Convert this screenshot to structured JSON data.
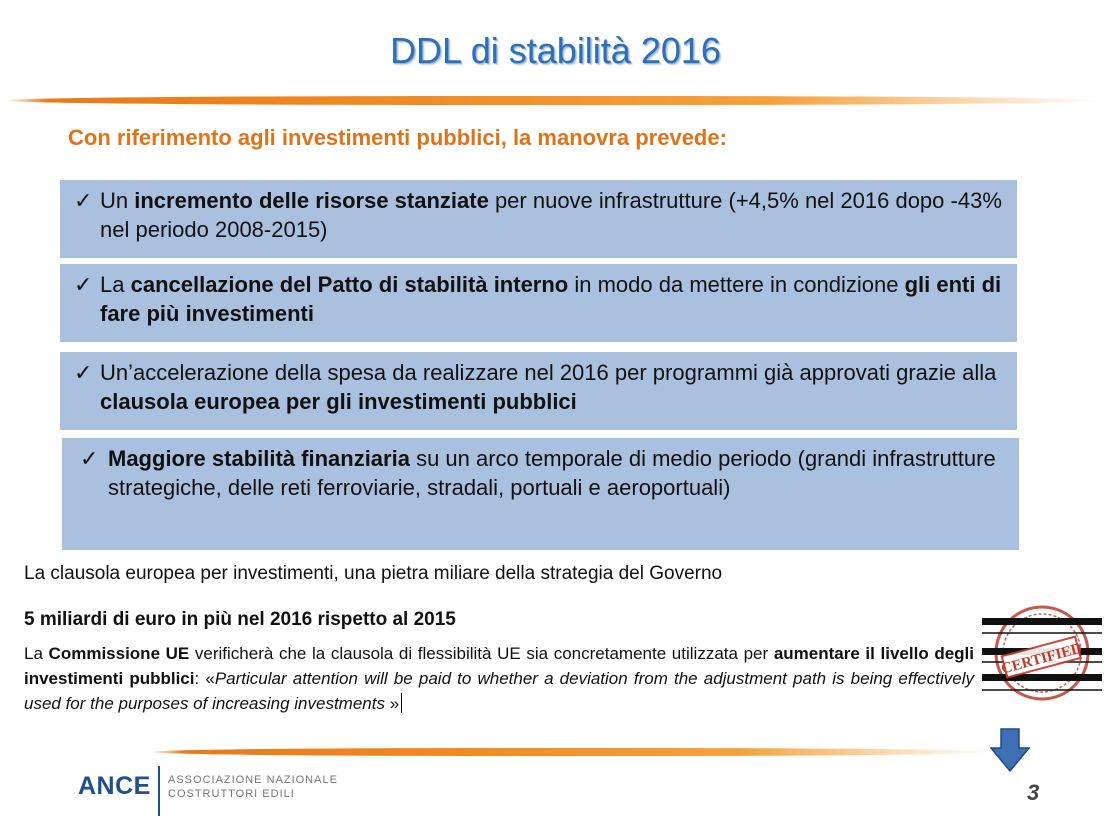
{
  "slide": {
    "title": "DDL di stabilità 2016",
    "intro": "Con riferimento agli investimenti pubblici, la manovra prevede:",
    "check_glyph": "✓",
    "bullets": [
      {
        "pre": "Un ",
        "bold": "incremento delle risorse stanziate",
        "post": " per nuove infrastrutture (+4,5% nel 2016 dopo -43% nel periodo 2008-2015)"
      },
      {
        "pre": "La ",
        "bold": "cancellazione del Patto di stabilità interno",
        "mid": " in modo da mettere in condizione ",
        "bold2": "gli enti di fare più investimenti"
      },
      {
        "pre": "Un’accelerazione della spesa da realizzare nel 2016 per programmi già approvati grazie alla ",
        "bold": "clausola europea per gli investimenti pubblici"
      },
      {
        "bold": "Maggiore stabilità finanziaria",
        "post": " su un arco temporale di medio periodo (grandi infrastrutture strategiche, delle reti ferroviarie, stradali, portuali e aeroportuali)"
      }
    ],
    "clausola_line": "La clausola europea per investimenti, una pietra miliare della strategia del Governo",
    "miliardi_line": "5 miliardi di euro in più nel 2016 rispetto al 2015",
    "commissione": {
      "p1": "La ",
      "b1": "Commissione UE",
      "p2": " verificherà che la clausola di flessibilità UE sia concretamente utilizzata per ",
      "b2": "aumentare il livello degli investimenti pubblici",
      "p3": ": «",
      "quote": "Particular attention will be paid to whether a deviation from the adjustment path is being effectively used for the purposes of increasing investments",
      "p4": " »"
    },
    "stamp_text": "CERTIFIED",
    "page_number": "3"
  },
  "footer": {
    "logo": "ANCE",
    "logo_sub_1": "ASSOCIAZIONE NAZIONALE",
    "logo_sub_2": "COSTRUTTORI EDILI"
  },
  "colors": {
    "title": "#2f6fb5",
    "accent_orange": "#e0731a",
    "box_fill": "#a9c0df",
    "stamp_red": "#c0392b",
    "arrow_blue": "#3d6fb4",
    "logo_blue": "#1e4f8f"
  }
}
